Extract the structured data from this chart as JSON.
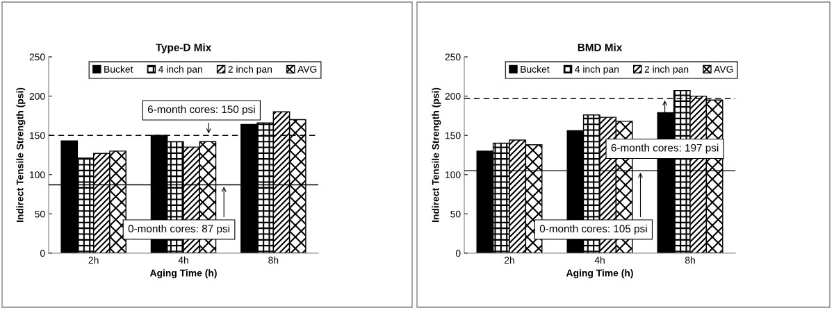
{
  "chart_data": [
    {
      "type": "bar",
      "title": "Type-D Mix",
      "xlabel": "Aging Time (h)",
      "ylabel": "Indirect Tensile Strength (psi)",
      "categories": [
        "2h",
        "4h",
        "8h"
      ],
      "series": [
        {
          "name": "Bucket",
          "color": "#000000",
          "values": [
            143,
            150,
            164
          ]
        },
        {
          "name": "4 inch pan",
          "color": "#000000",
          "values": [
            121,
            142,
            166
          ]
        },
        {
          "name": "2 inch pan",
          "color": "#000000",
          "values": [
            127,
            135,
            180
          ]
        },
        {
          "name": "AVG",
          "color": "#000000",
          "values": [
            130,
            142,
            170
          ]
        }
      ],
      "ylim": [
        0,
        250
      ],
      "yticks": [
        0,
        50,
        100,
        150,
        200,
        250
      ],
      "legend": "top",
      "grid": false,
      "ref_lines": [
        {
          "axis": "y",
          "value": 150,
          "label": "6-month cores: 150 psi",
          "color": "#000000",
          "line_style": "dashed"
        },
        {
          "axis": "y",
          "value": 87,
          "label": "0-month cores: 87 psi",
          "color": "#000000",
          "line_style": "solid"
        }
      ]
    },
    {
      "type": "bar",
      "title": "BMD Mix",
      "xlabel": "Aging Time (h)",
      "ylabel": "Indirect Tensile Strength (psi)",
      "categories": [
        "2h",
        "4h",
        "8h"
      ],
      "series": [
        {
          "name": "Bucket",
          "color": "#000000",
          "values": [
            130,
            156,
            179
          ]
        },
        {
          "name": "4 inch pan",
          "color": "#000000",
          "values": [
            140,
            176,
            207
          ]
        },
        {
          "name": "2 inch pan",
          "color": "#000000",
          "values": [
            144,
            173,
            200
          ]
        },
        {
          "name": "AVG",
          "color": "#000000",
          "values": [
            138,
            168,
            195
          ]
        }
      ],
      "ylim": [
        0,
        250
      ],
      "yticks": [
        0,
        50,
        100,
        150,
        200,
        250
      ],
      "legend": "top",
      "grid": false,
      "ref_lines": [
        {
          "axis": "y",
          "value": 197,
          "label": "6-month cores: 197 psi",
          "color": "#000000",
          "line_style": "dashed"
        },
        {
          "axis": "y",
          "value": 105,
          "label": "0-month cores: 105 psi",
          "color": "#000000",
          "line_style": "solid"
        }
      ]
    }
  ]
}
